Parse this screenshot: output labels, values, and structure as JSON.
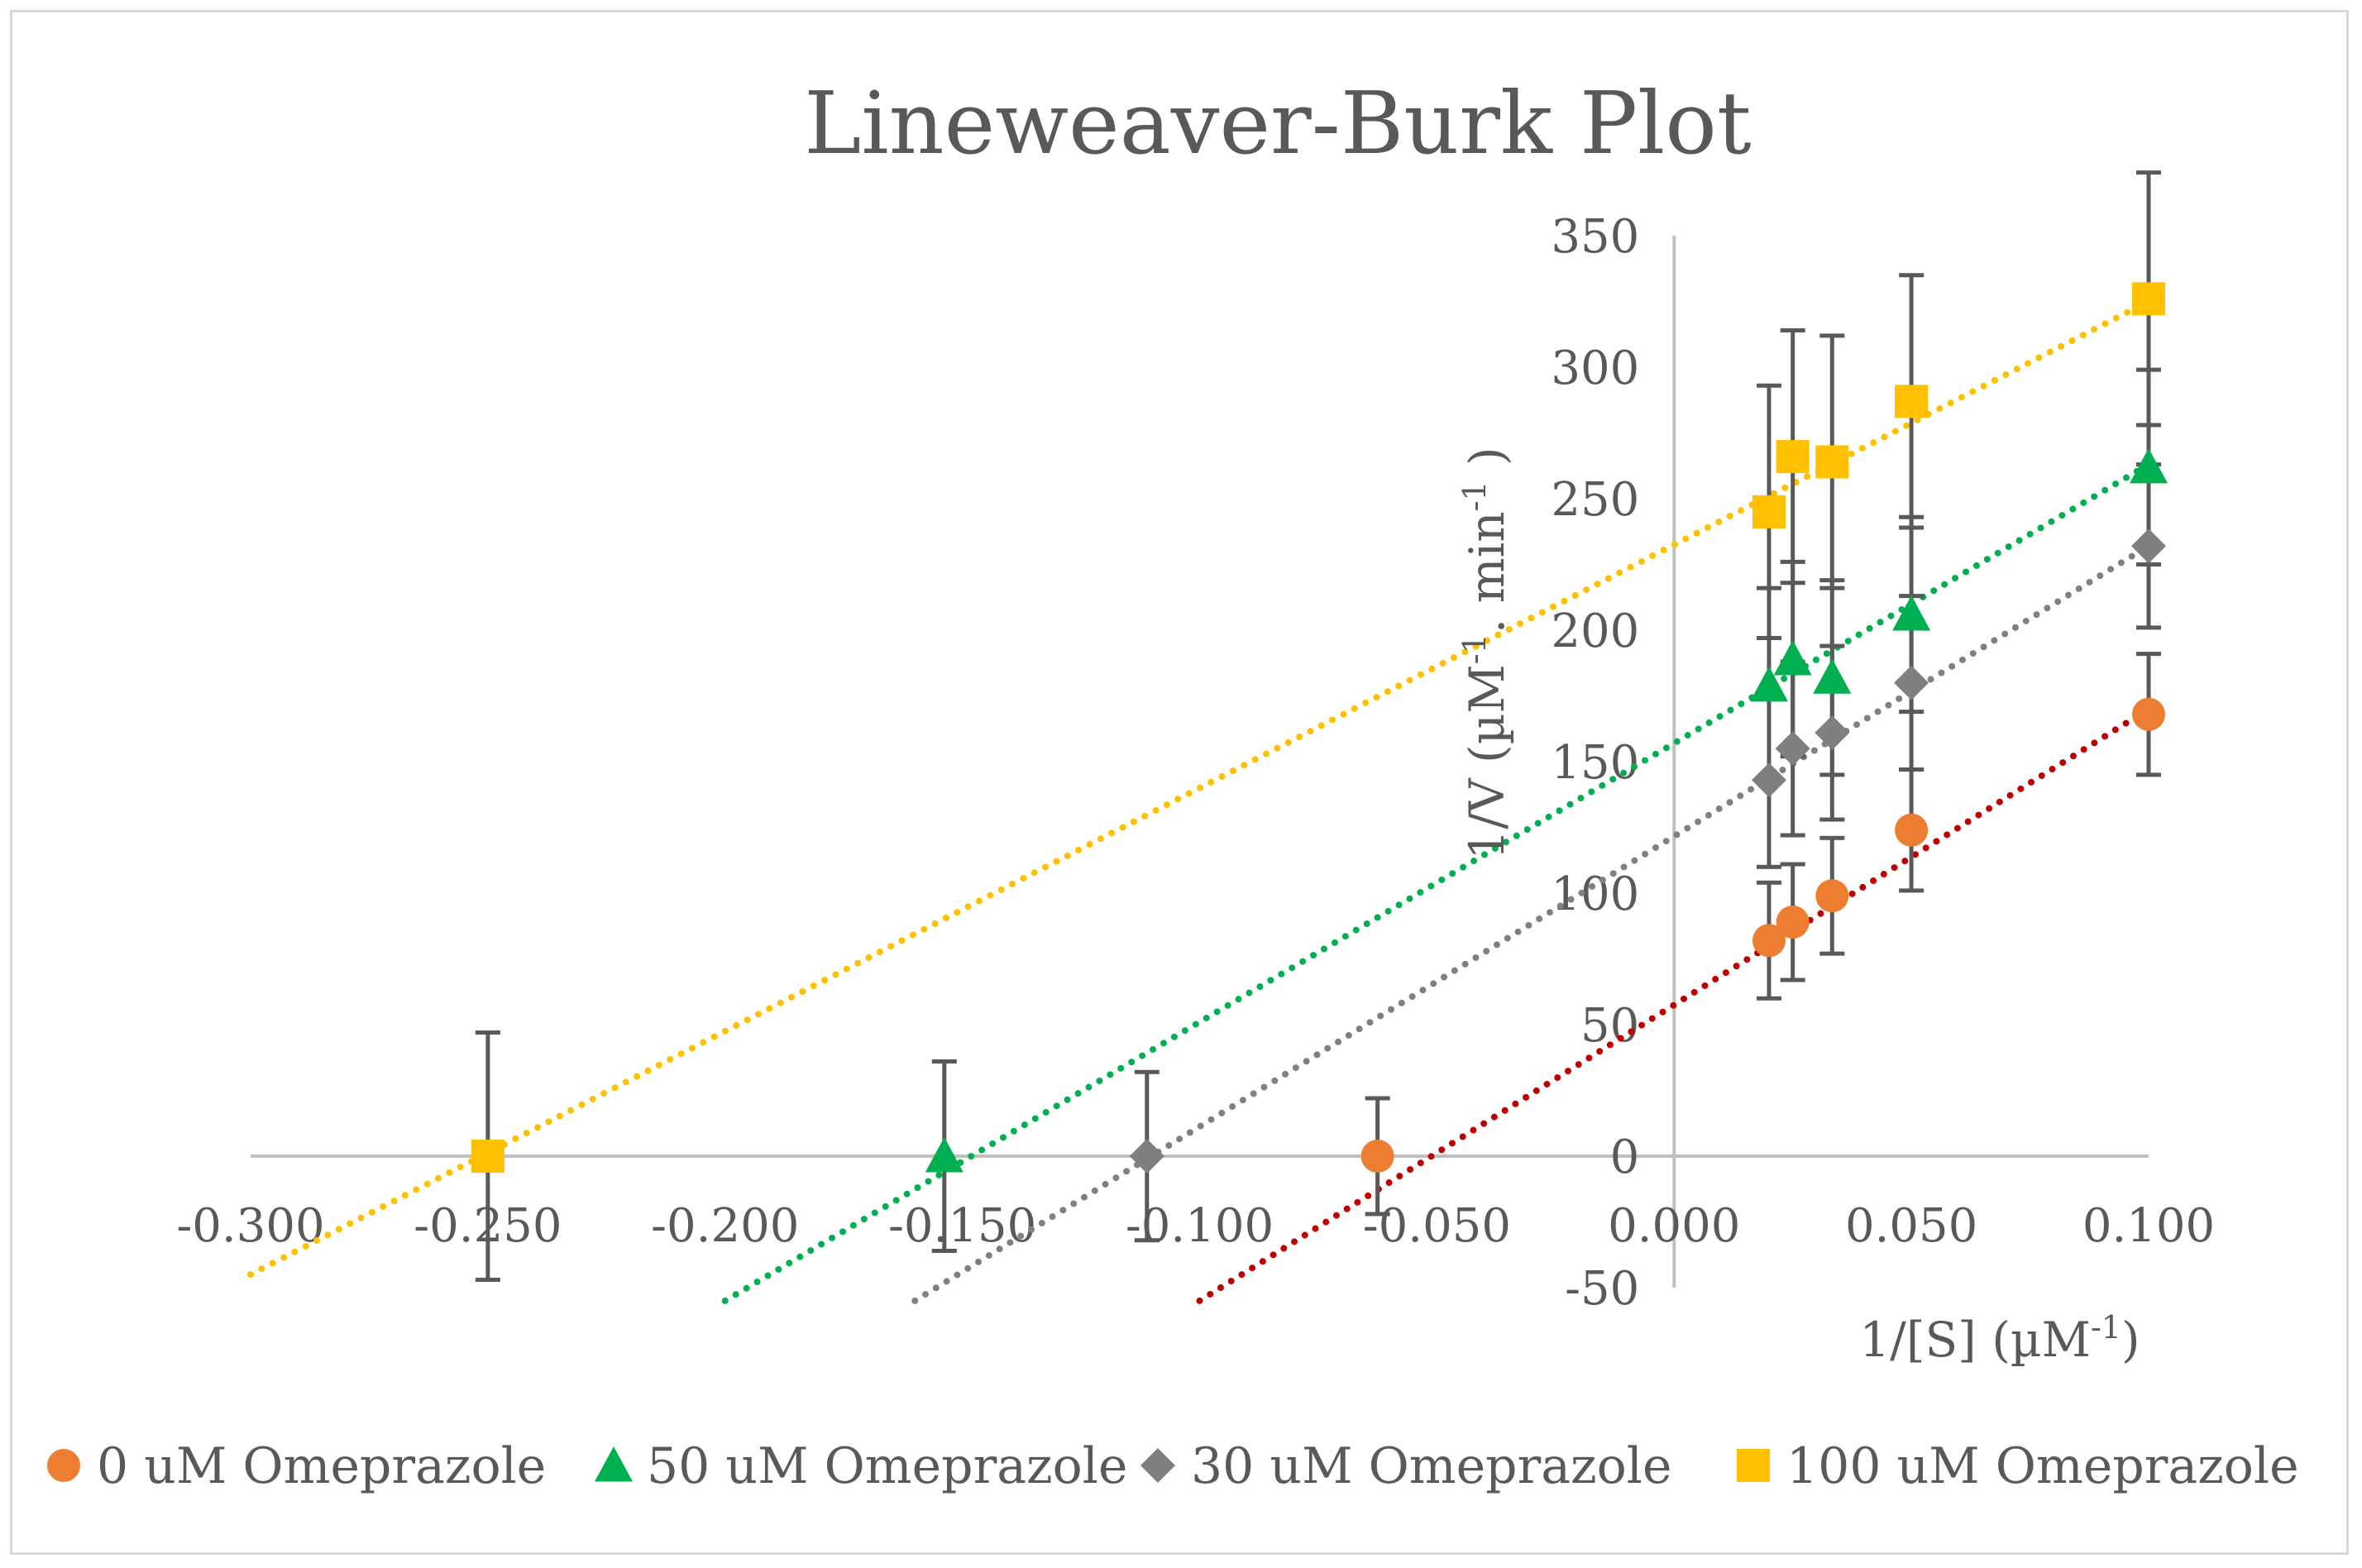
{
  "chart_data": {
    "type": "scatter",
    "title": "Lineweaver-Burk Plot",
    "xlabel": "1/[S] (µM-1)",
    "xlabel_parts": [
      "1/[S] (µM",
      "-1",
      ")"
    ],
    "ylabel": "1/V (µM-1. min-1 )",
    "ylabel_parts": [
      "1/V (µM",
      "-1",
      ". min",
      "-1",
      " )"
    ],
    "xlim": [
      -0.3,
      0.1
    ],
    "ylim": [
      -50,
      350
    ],
    "x_ticks": [
      "-0.300",
      "-0.250",
      "-0.200",
      "-0.150",
      "-0.100",
      "-0.050",
      "0.000",
      "0.050",
      "0.100"
    ],
    "y_ticks": [
      "-50",
      "0",
      "50",
      "100",
      "150",
      "200",
      "250",
      "300",
      "350"
    ],
    "legend_position": "bottom",
    "colors": {
      "axis": "#bfbfbf",
      "error_bar": "#595959",
      "text": "#595959"
    },
    "series": [
      {
        "name": "0 uM Omeprazole",
        "marker": "circle",
        "color": "#ed7d31",
        "trend_color": "#c00000",
        "trendline": [
          {
            "x": -0.1,
            "y": -55
          },
          {
            "x": 0.1,
            "y": 170
          }
        ],
        "points": [
          {
            "x": -0.0625,
            "y": 0,
            "err": 22
          },
          {
            "x": 0.02,
            "y": 82,
            "err": 22
          },
          {
            "x": 0.025,
            "y": 89,
            "err": 22
          },
          {
            "x": 0.0333,
            "y": 99,
            "err": 22
          },
          {
            "x": 0.05,
            "y": 124,
            "err": 23
          },
          {
            "x": 0.1,
            "y": 168,
            "err": 23
          }
        ]
      },
      {
        "name": "50 uM Omeprazole",
        "marker": "triangle",
        "color": "#00b050",
        "trend_color": "#00b050",
        "trendline": [
          {
            "x": -0.2,
            "y": -55
          },
          {
            "x": 0.1,
            "y": 263
          }
        ],
        "points": [
          {
            "x": -0.1538,
            "y": 0,
            "err": 36
          },
          {
            "x": 0.02,
            "y": 179,
            "err": 37
          },
          {
            "x": 0.025,
            "y": 189,
            "err": 37
          },
          {
            "x": 0.0333,
            "y": 182,
            "err": 37
          },
          {
            "x": 0.05,
            "y": 206,
            "err": 37
          },
          {
            "x": 0.1,
            "y": 262,
            "err": 37
          }
        ]
      },
      {
        "name": "30 uM Omeprazole",
        "marker": "diamond",
        "color": "#7f7f7f",
        "trend_color": "#808080",
        "trendline": [
          {
            "x": -0.16,
            "y": -55
          },
          {
            "x": 0.1,
            "y": 232
          }
        ],
        "points": [
          {
            "x": -0.1111,
            "y": 0,
            "err": 32
          },
          {
            "x": 0.02,
            "y": 143,
            "err": 33
          },
          {
            "x": 0.025,
            "y": 155,
            "err": 33
          },
          {
            "x": 0.0333,
            "y": 161,
            "err": 33
          },
          {
            "x": 0.05,
            "y": 180,
            "err": 33
          },
          {
            "x": 0.1,
            "y": 232,
            "err": 31
          }
        ]
      },
      {
        "name": "100 uM Omeprazole",
        "marker": "square",
        "color": "#ffc000",
        "trend_color": "#ffc000",
        "trendline": [
          {
            "x": -0.3,
            "y": -45
          },
          {
            "x": 0.1,
            "y": 325
          }
        ],
        "points": [
          {
            "x": -0.25,
            "y": 0,
            "err": 47
          },
          {
            "x": 0.02,
            "y": 245,
            "err": 48
          },
          {
            "x": 0.025,
            "y": 266,
            "err": 48
          },
          {
            "x": 0.0333,
            "y": 264,
            "err": 48
          },
          {
            "x": 0.05,
            "y": 287,
            "err": 48
          },
          {
            "x": 0.1,
            "y": 326,
            "err": 48
          }
        ]
      }
    ]
  }
}
